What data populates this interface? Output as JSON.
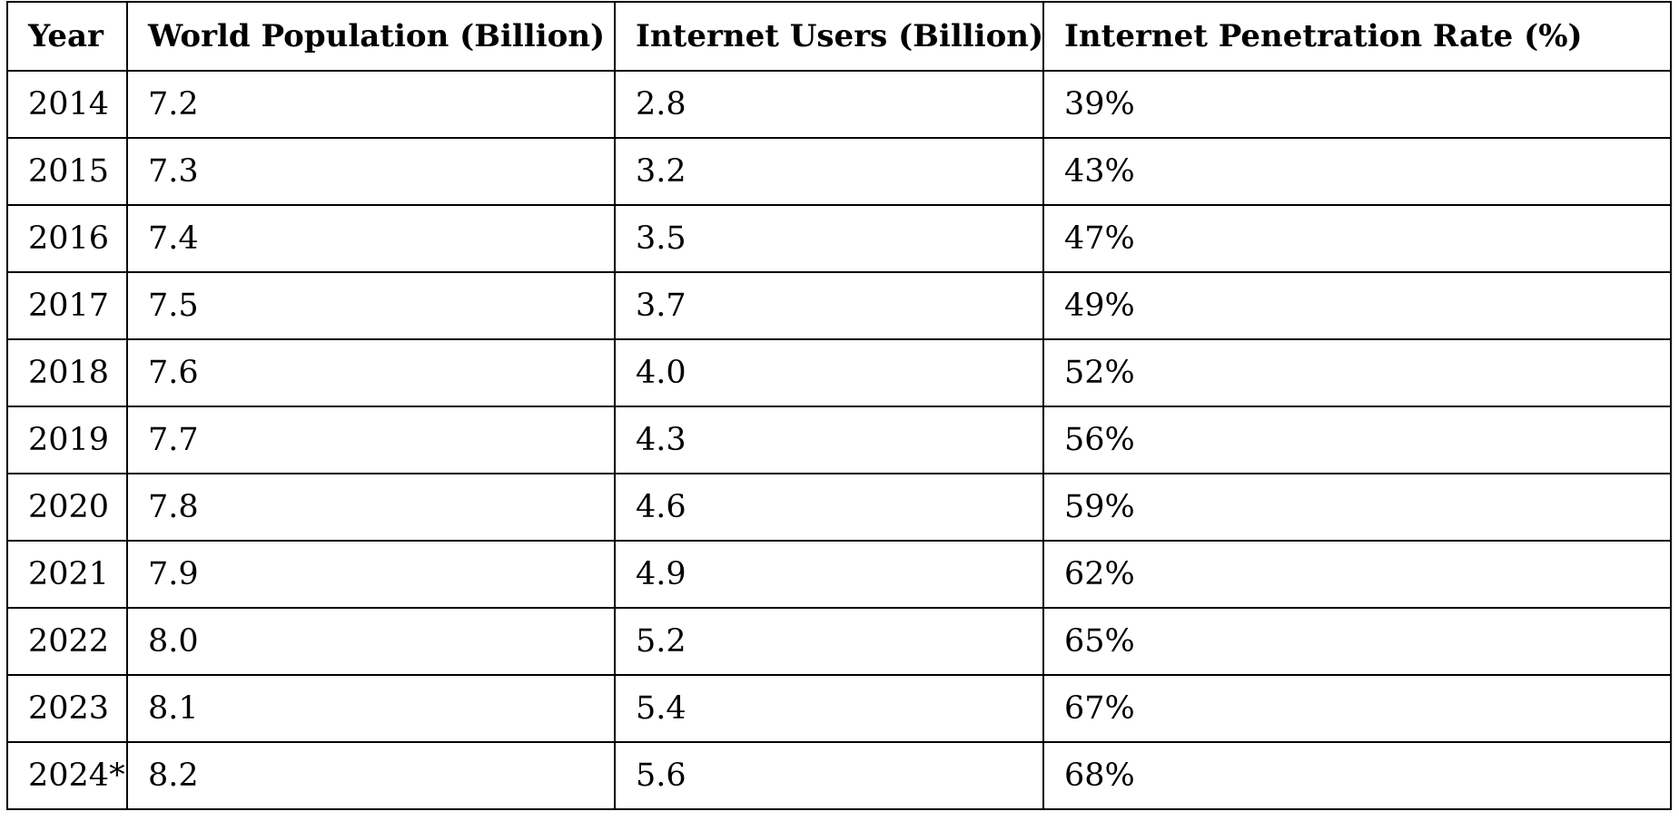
{
  "table": {
    "headers": [
      "Year",
      "World Population (Billion)",
      "Internet Users (Billion)",
      "Internet Penetration Rate (%)"
    ],
    "rows": [
      [
        "2014",
        "7.2",
        "2.8",
        "39%"
      ],
      [
        "2015",
        "7.3",
        "3.2",
        "43%"
      ],
      [
        "2016",
        "7.4",
        "3.5",
        "47%"
      ],
      [
        "2017",
        "7.5",
        "3.7",
        "49%"
      ],
      [
        "2018",
        "7.6",
        "4.0",
        "52%"
      ],
      [
        "2019",
        "7.7",
        "4.3",
        "56%"
      ],
      [
        "2020",
        "7.8",
        "4.6",
        "59%"
      ],
      [
        "2021",
        "7.9",
        "4.9",
        "62%"
      ],
      [
        "2022",
        "8.0",
        "5.2",
        "65%"
      ],
      [
        "2023",
        "8.1",
        "5.4",
        "67%"
      ],
      [
        "2024*",
        "8.2",
        "5.6",
        "68%"
      ]
    ]
  },
  "colors": {
    "border": "#000000",
    "text": "#000000",
    "background": "#ffffff"
  }
}
